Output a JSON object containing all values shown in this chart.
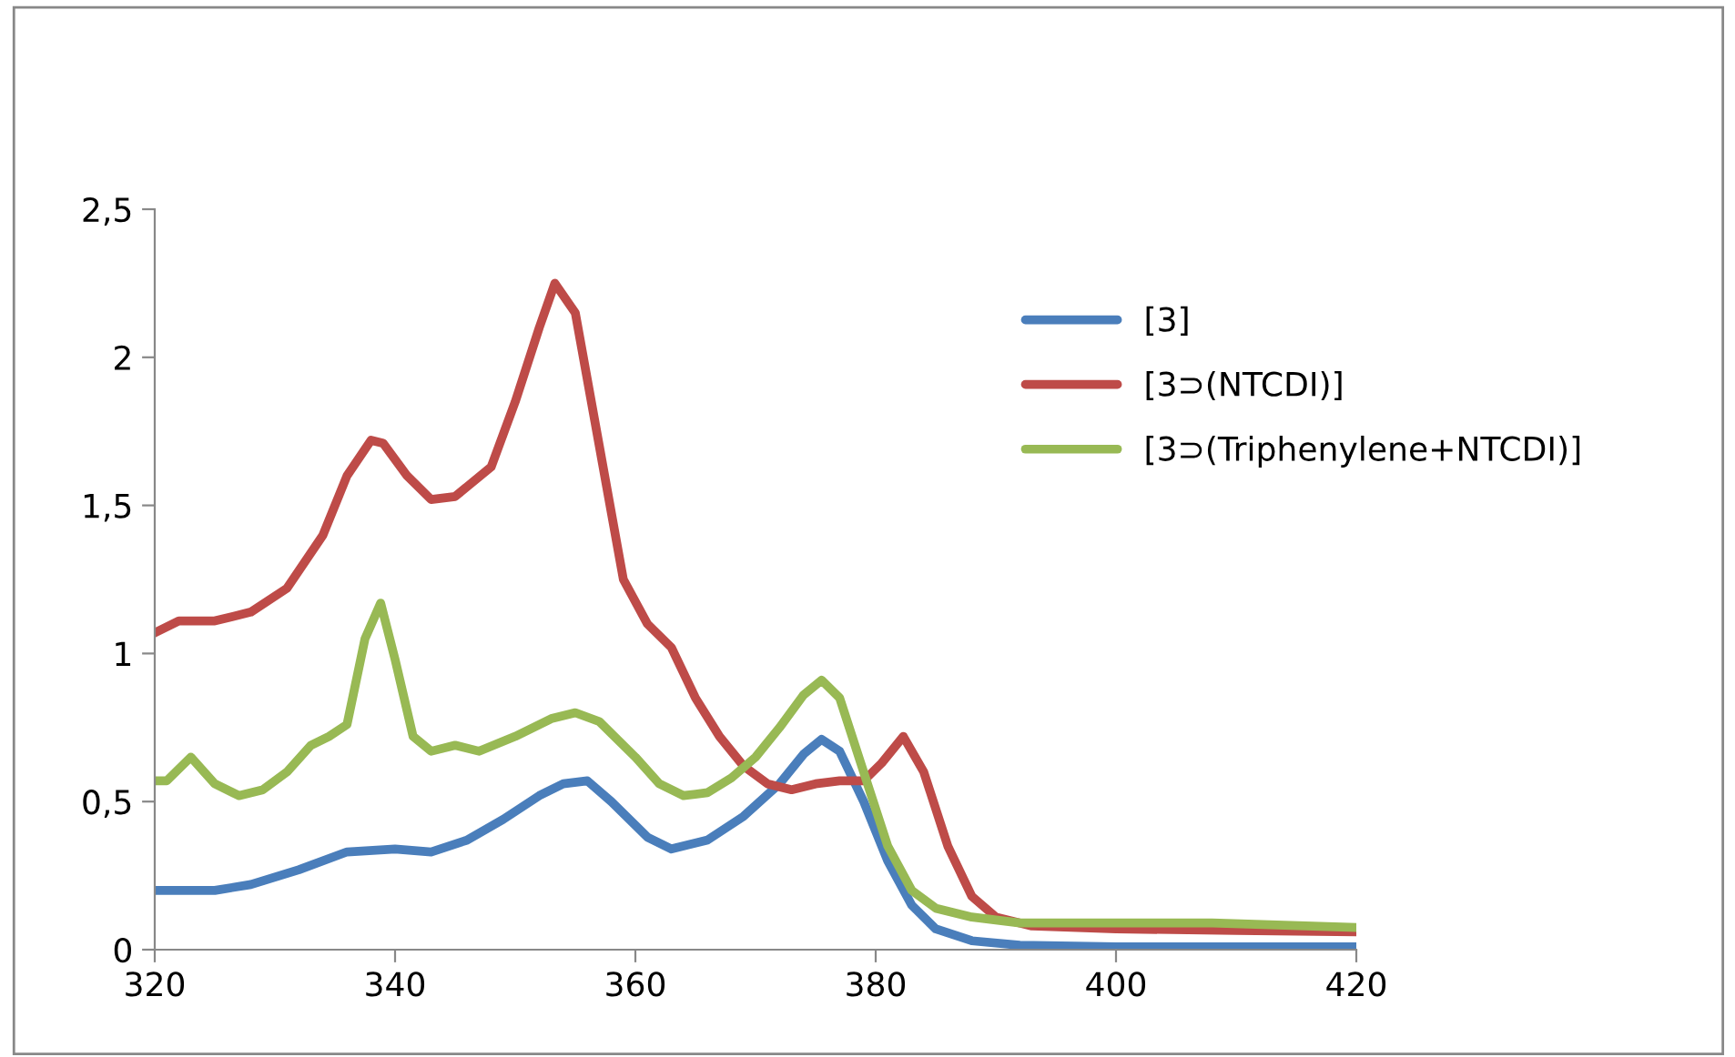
{
  "chart_data": {
    "type": "line",
    "legend": "right",
    "grid": false,
    "marker": "none",
    "line_style": "solid",
    "xlim": [
      320,
      420
    ],
    "xticks": [
      320,
      340,
      360,
      380,
      400,
      420
    ],
    "ylim": [
      0,
      2.5
    ],
    "yticks": [
      0,
      {
        "value": 0.5,
        "label": "0,5"
      },
      1,
      {
        "value": 1.5,
        "label": "1,5"
      },
      2,
      {
        "value": 2.5,
        "label": "2,5"
      }
    ],
    "series": [
      {
        "name": "[3]",
        "color": "#4a7ebb",
        "x": [
          320,
          325,
          328,
          332,
          336,
          340,
          343,
          346,
          349,
          352,
          354,
          356,
          358,
          361,
          363,
          366,
          369,
          372,
          374,
          375.5,
          377,
          379,
          381,
          383,
          385,
          388,
          392,
          400,
          420
        ],
        "values": [
          0.2,
          0.2,
          0.22,
          0.27,
          0.33,
          0.34,
          0.33,
          0.37,
          0.44,
          0.52,
          0.56,
          0.57,
          0.5,
          0.38,
          0.34,
          0.37,
          0.45,
          0.56,
          0.66,
          0.71,
          0.67,
          0.5,
          0.3,
          0.15,
          0.07,
          0.03,
          0.015,
          0.01,
          0.01
        ]
      },
      {
        "name": "[3⊃(NTCDI)]",
        "color": "#be4b48",
        "x": [
          320,
          322,
          325,
          328,
          331,
          334,
          336,
          338,
          339,
          341,
          343,
          345,
          348,
          350,
          352,
          353.3,
          355,
          357,
          359,
          361,
          363,
          365,
          367,
          369,
          371,
          373,
          375,
          377,
          379,
          380.5,
          382.3,
          384,
          386,
          388,
          390,
          393,
          400,
          410,
          420
        ],
        "values": [
          1.07,
          1.11,
          1.11,
          1.14,
          1.22,
          1.4,
          1.6,
          1.72,
          1.71,
          1.6,
          1.52,
          1.53,
          1.63,
          1.85,
          2.1,
          2.25,
          2.15,
          1.7,
          1.25,
          1.1,
          1.02,
          0.85,
          0.72,
          0.62,
          0.56,
          0.54,
          0.56,
          0.57,
          0.57,
          0.63,
          0.72,
          0.6,
          0.35,
          0.18,
          0.11,
          0.08,
          0.07,
          0.065,
          0.06
        ]
      },
      {
        "name": "[3⊃(Triphenylene+NTCDI)]",
        "color": "#98b954",
        "x": [
          320,
          321,
          323,
          325,
          327,
          329,
          331,
          333,
          334.5,
          336,
          337.5,
          338.8,
          340,
          341.5,
          343,
          345,
          347,
          350,
          353,
          355,
          357,
          360,
          362,
          364,
          366,
          368,
          370,
          372,
          374,
          375.5,
          377,
          379,
          381,
          383,
          385,
          388,
          392,
          400,
          408,
          420
        ],
        "values": [
          0.57,
          0.57,
          0.65,
          0.56,
          0.52,
          0.54,
          0.6,
          0.69,
          0.72,
          0.76,
          1.05,
          1.17,
          0.98,
          0.72,
          0.67,
          0.69,
          0.67,
          0.72,
          0.78,
          0.8,
          0.77,
          0.65,
          0.56,
          0.52,
          0.53,
          0.58,
          0.65,
          0.75,
          0.86,
          0.91,
          0.85,
          0.6,
          0.35,
          0.2,
          0.14,
          0.11,
          0.09,
          0.09,
          0.09,
          0.075
        ]
      }
    ]
  }
}
